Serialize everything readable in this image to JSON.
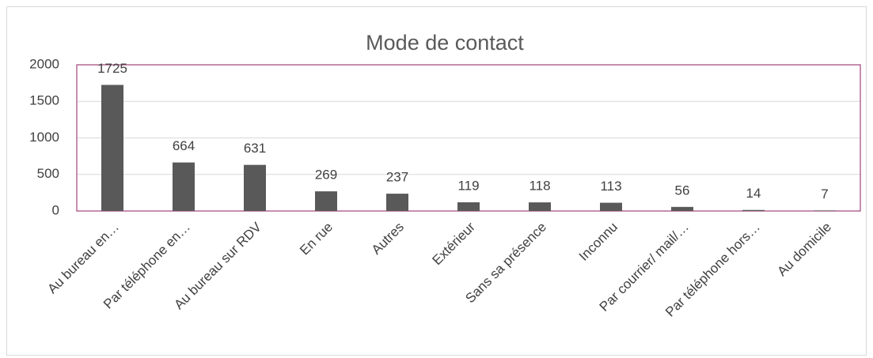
{
  "chart_data": {
    "type": "bar",
    "title": "Mode de contact",
    "categories": [
      "Au bureau en…",
      "Par téléphone en…",
      "Au bureau sur RDV",
      "En rue",
      "Autres",
      "Extérieur",
      "Sans sa présence",
      "Inconnu",
      "Par courrier/ mail/…",
      "Par téléphone hors…",
      "Au domicile"
    ],
    "values": [
      1725,
      664,
      631,
      269,
      237,
      119,
      118,
      113,
      56,
      14,
      7
    ],
    "color": "#595959",
    "ylim": [
      0,
      2000
    ],
    "yticks": [
      0,
      500,
      1000,
      1500,
      2000
    ],
    "grid": true
  }
}
